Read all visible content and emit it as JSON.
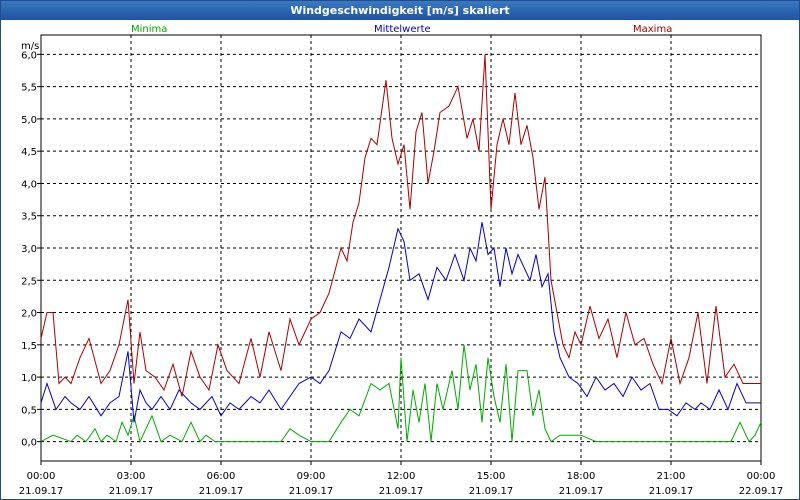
{
  "window": {
    "title": "Windgeschwindigkeit [m/s] skaliert"
  },
  "colors": {
    "minima": "#00aa00",
    "mittelwerte": "#0000cc",
    "maxima": "#aa0000"
  },
  "chart_data": {
    "type": "line",
    "title": "Windgeschwindigkeit [m/s] skaliert",
    "ylabel": "m/s",
    "xlabel": "",
    "ylim": [
      -0.3,
      6.3
    ],
    "y_ticks": [
      "6,0",
      "5,5",
      "5,0",
      "4,5",
      "4,0",
      "3,5",
      "3,0",
      "2,5",
      "2,0",
      "1,5",
      "1,0",
      "0,5",
      "0,0"
    ],
    "y_tick_values": [
      6.0,
      5.5,
      5.0,
      4.5,
      4.0,
      3.5,
      3.0,
      2.5,
      2.0,
      1.5,
      1.0,
      0.5,
      0.0
    ],
    "x_ticks": [
      {
        "time": "00:00",
        "date": "21.09.17",
        "hour": 0
      },
      {
        "time": "03:00",
        "date": "21.09.17",
        "hour": 3
      },
      {
        "time": "06:00",
        "date": "21.09.17",
        "hour": 6
      },
      {
        "time": "09:00",
        "date": "21.09.17",
        "hour": 9
      },
      {
        "time": "12:00",
        "date": "21.09.17",
        "hour": 12
      },
      {
        "time": "15:00",
        "date": "21.09.17",
        "hour": 15
      },
      {
        "time": "18:00",
        "date": "21.09.17",
        "hour": 18
      },
      {
        "time": "21:00",
        "date": "21.09.17",
        "hour": 21
      },
      {
        "time": "00:00",
        "date": "22.09.17",
        "hour": 24
      }
    ],
    "grid": true,
    "series": [
      {
        "name": "Minima",
        "x": [
          0,
          0.4,
          1,
          1.2,
          1.5,
          1.8,
          2,
          2.2,
          2.5,
          2.7,
          2.9,
          3.1,
          3.3,
          3.5,
          3.7,
          4,
          4.3,
          4.7,
          5,
          5.3,
          5.5,
          5.8,
          6,
          6.5,
          7,
          7.5,
          8,
          8.3,
          8.6,
          9,
          9.3,
          9.6,
          10,
          10.3,
          10.6,
          11,
          11.3,
          11.6,
          11.9,
          12,
          12.2,
          12.4,
          12.6,
          12.8,
          13,
          13.2,
          13.4,
          13.7,
          13.9,
          14.1,
          14.3,
          14.5,
          14.7,
          14.9,
          15.1,
          15.3,
          15.5,
          15.7,
          15.9,
          16.2,
          16.4,
          16.6,
          16.8,
          17,
          17.3,
          17.6,
          18,
          18.5,
          19,
          19.5,
          20,
          20.5,
          21,
          21.5,
          22,
          22.5,
          23,
          23.3,
          23.6,
          23.8,
          24
        ],
        "values": [
          0.0,
          0.1,
          0.0,
          0.1,
          0.0,
          0.2,
          0.0,
          0.1,
          0.0,
          0.3,
          0.1,
          0.4,
          0.0,
          0.2,
          0.4,
          0.0,
          0.1,
          0.0,
          0.3,
          0.0,
          0.1,
          0.0,
          0.0,
          0.0,
          0.0,
          0.0,
          0.0,
          0.2,
          0.1,
          0.0,
          0.0,
          0.0,
          0.3,
          0.5,
          0.4,
          0.9,
          0.8,
          0.9,
          0.2,
          1.3,
          0.0,
          0.8,
          0.3,
          0.9,
          0.0,
          0.9,
          0.5,
          1.1,
          0.5,
          1.5,
          0.8,
          1.2,
          0.3,
          1.3,
          0.7,
          0.3,
          1.2,
          0.0,
          1.1,
          1.1,
          0.4,
          0.8,
          0.2,
          0.0,
          0.1,
          0.1,
          0.1,
          0.0,
          0.0,
          0.0,
          0.0,
          0.0,
          0.0,
          0.0,
          0.0,
          0.0,
          0.0,
          0.3,
          0.0,
          0.1,
          0.3
        ]
      },
      {
        "name": "Mittelwerte",
        "x": [
          0,
          0.2,
          0.5,
          0.8,
          1,
          1.3,
          1.6,
          2,
          2.3,
          2.6,
          2.9,
          3.1,
          3.3,
          3.5,
          3.7,
          4,
          4.3,
          4.6,
          5,
          5.3,
          5.7,
          6,
          6.3,
          6.6,
          7,
          7.3,
          7.6,
          8,
          8.3,
          8.6,
          9,
          9.3,
          9.6,
          10,
          10.3,
          10.6,
          11,
          11.3,
          11.6,
          11.9,
          12.1,
          12.3,
          12.6,
          12.9,
          13.2,
          13.5,
          13.8,
          14.1,
          14.3,
          14.5,
          14.7,
          14.9,
          15.1,
          15.3,
          15.5,
          15.7,
          15.9,
          16.1,
          16.3,
          16.5,
          16.7,
          16.9,
          17.1,
          17.3,
          17.6,
          17.9,
          18.2,
          18.5,
          18.8,
          19.1,
          19.4,
          19.7,
          20,
          20.3,
          20.6,
          20.9,
          21.2,
          21.5,
          21.8,
          22,
          22.3,
          22.6,
          22.9,
          23.2,
          23.5,
          23.8,
          24
        ],
        "values": [
          0.6,
          0.9,
          0.5,
          0.7,
          0.6,
          0.5,
          0.7,
          0.4,
          0.6,
          0.7,
          1.4,
          0.3,
          0.8,
          0.6,
          0.5,
          0.7,
          0.5,
          0.8,
          0.6,
          0.5,
          0.7,
          0.4,
          0.6,
          0.5,
          0.7,
          0.6,
          0.8,
          0.5,
          0.7,
          0.9,
          1.0,
          0.9,
          1.1,
          1.7,
          1.6,
          1.9,
          1.7,
          2.2,
          2.7,
          3.3,
          3.1,
          2.5,
          2.6,
          2.2,
          2.7,
          2.5,
          2.9,
          2.5,
          3.0,
          2.8,
          3.4,
          2.9,
          3.0,
          2.4,
          3.0,
          2.6,
          2.9,
          2.7,
          2.5,
          2.9,
          2.4,
          2.6,
          1.7,
          1.3,
          1.0,
          0.9,
          0.7,
          1.0,
          0.8,
          0.9,
          0.7,
          1.0,
          0.8,
          0.9,
          0.5,
          0.5,
          0.4,
          0.6,
          0.5,
          0.6,
          0.5,
          0.8,
          0.5,
          0.9,
          0.6,
          0.6,
          0.6
        ]
      },
      {
        "name": "Maxima",
        "x": [
          0,
          0.2,
          0.4,
          0.6,
          0.8,
          1,
          1.3,
          1.6,
          2,
          2.3,
          2.6,
          2.9,
          3.1,
          3.3,
          3.5,
          3.8,
          4.1,
          4.4,
          4.7,
          5,
          5.3,
          5.6,
          5.9,
          6.2,
          6.6,
          7,
          7.3,
          7.6,
          8,
          8.3,
          8.6,
          9,
          9.3,
          9.6,
          10,
          10.2,
          10.4,
          10.6,
          10.8,
          11,
          11.2,
          11.5,
          11.7,
          11.9,
          12.1,
          12.3,
          12.5,
          12.7,
          12.9,
          13.1,
          13.3,
          13.6,
          13.9,
          14.2,
          14.4,
          14.6,
          14.8,
          15,
          15.2,
          15.4,
          15.6,
          15.8,
          16,
          16.2,
          16.4,
          16.6,
          16.8,
          17,
          17.2,
          17.4,
          17.6,
          17.8,
          18,
          18.3,
          18.6,
          18.9,
          19.2,
          19.5,
          19.8,
          20.1,
          20.4,
          20.7,
          21,
          21.3,
          21.6,
          21.9,
          22.2,
          22.5,
          22.8,
          23.1,
          23.4,
          23.7,
          24
        ],
        "values": [
          1.6,
          2.0,
          2.0,
          0.9,
          1.0,
          0.9,
          1.3,
          1.6,
          0.9,
          1.1,
          1.5,
          2.2,
          0.9,
          1.7,
          1.1,
          1.0,
          0.8,
          1.2,
          0.7,
          1.4,
          1.0,
          0.8,
          1.5,
          1.1,
          0.9,
          1.6,
          1.0,
          1.7,
          1.1,
          1.9,
          1.5,
          1.9,
          2.0,
          2.3,
          3.0,
          2.8,
          3.4,
          3.7,
          4.4,
          4.7,
          4.6,
          5.6,
          4.7,
          4.3,
          4.6,
          3.6,
          4.8,
          5.1,
          4.0,
          4.5,
          5.1,
          5.2,
          5.5,
          4.7,
          5.0,
          4.5,
          6.0,
          3.6,
          4.6,
          5.0,
          4.6,
          5.4,
          4.6,
          4.9,
          4.4,
          3.6,
          4.1,
          2.5,
          2.0,
          1.5,
          1.3,
          1.7,
          1.5,
          2.1,
          1.6,
          1.9,
          1.3,
          2.0,
          1.5,
          1.6,
          1.2,
          0.9,
          1.6,
          0.9,
          1.3,
          2.0,
          0.9,
          2.1,
          1.0,
          1.2,
          0.9,
          0.9,
          0.9
        ]
      }
    ]
  }
}
